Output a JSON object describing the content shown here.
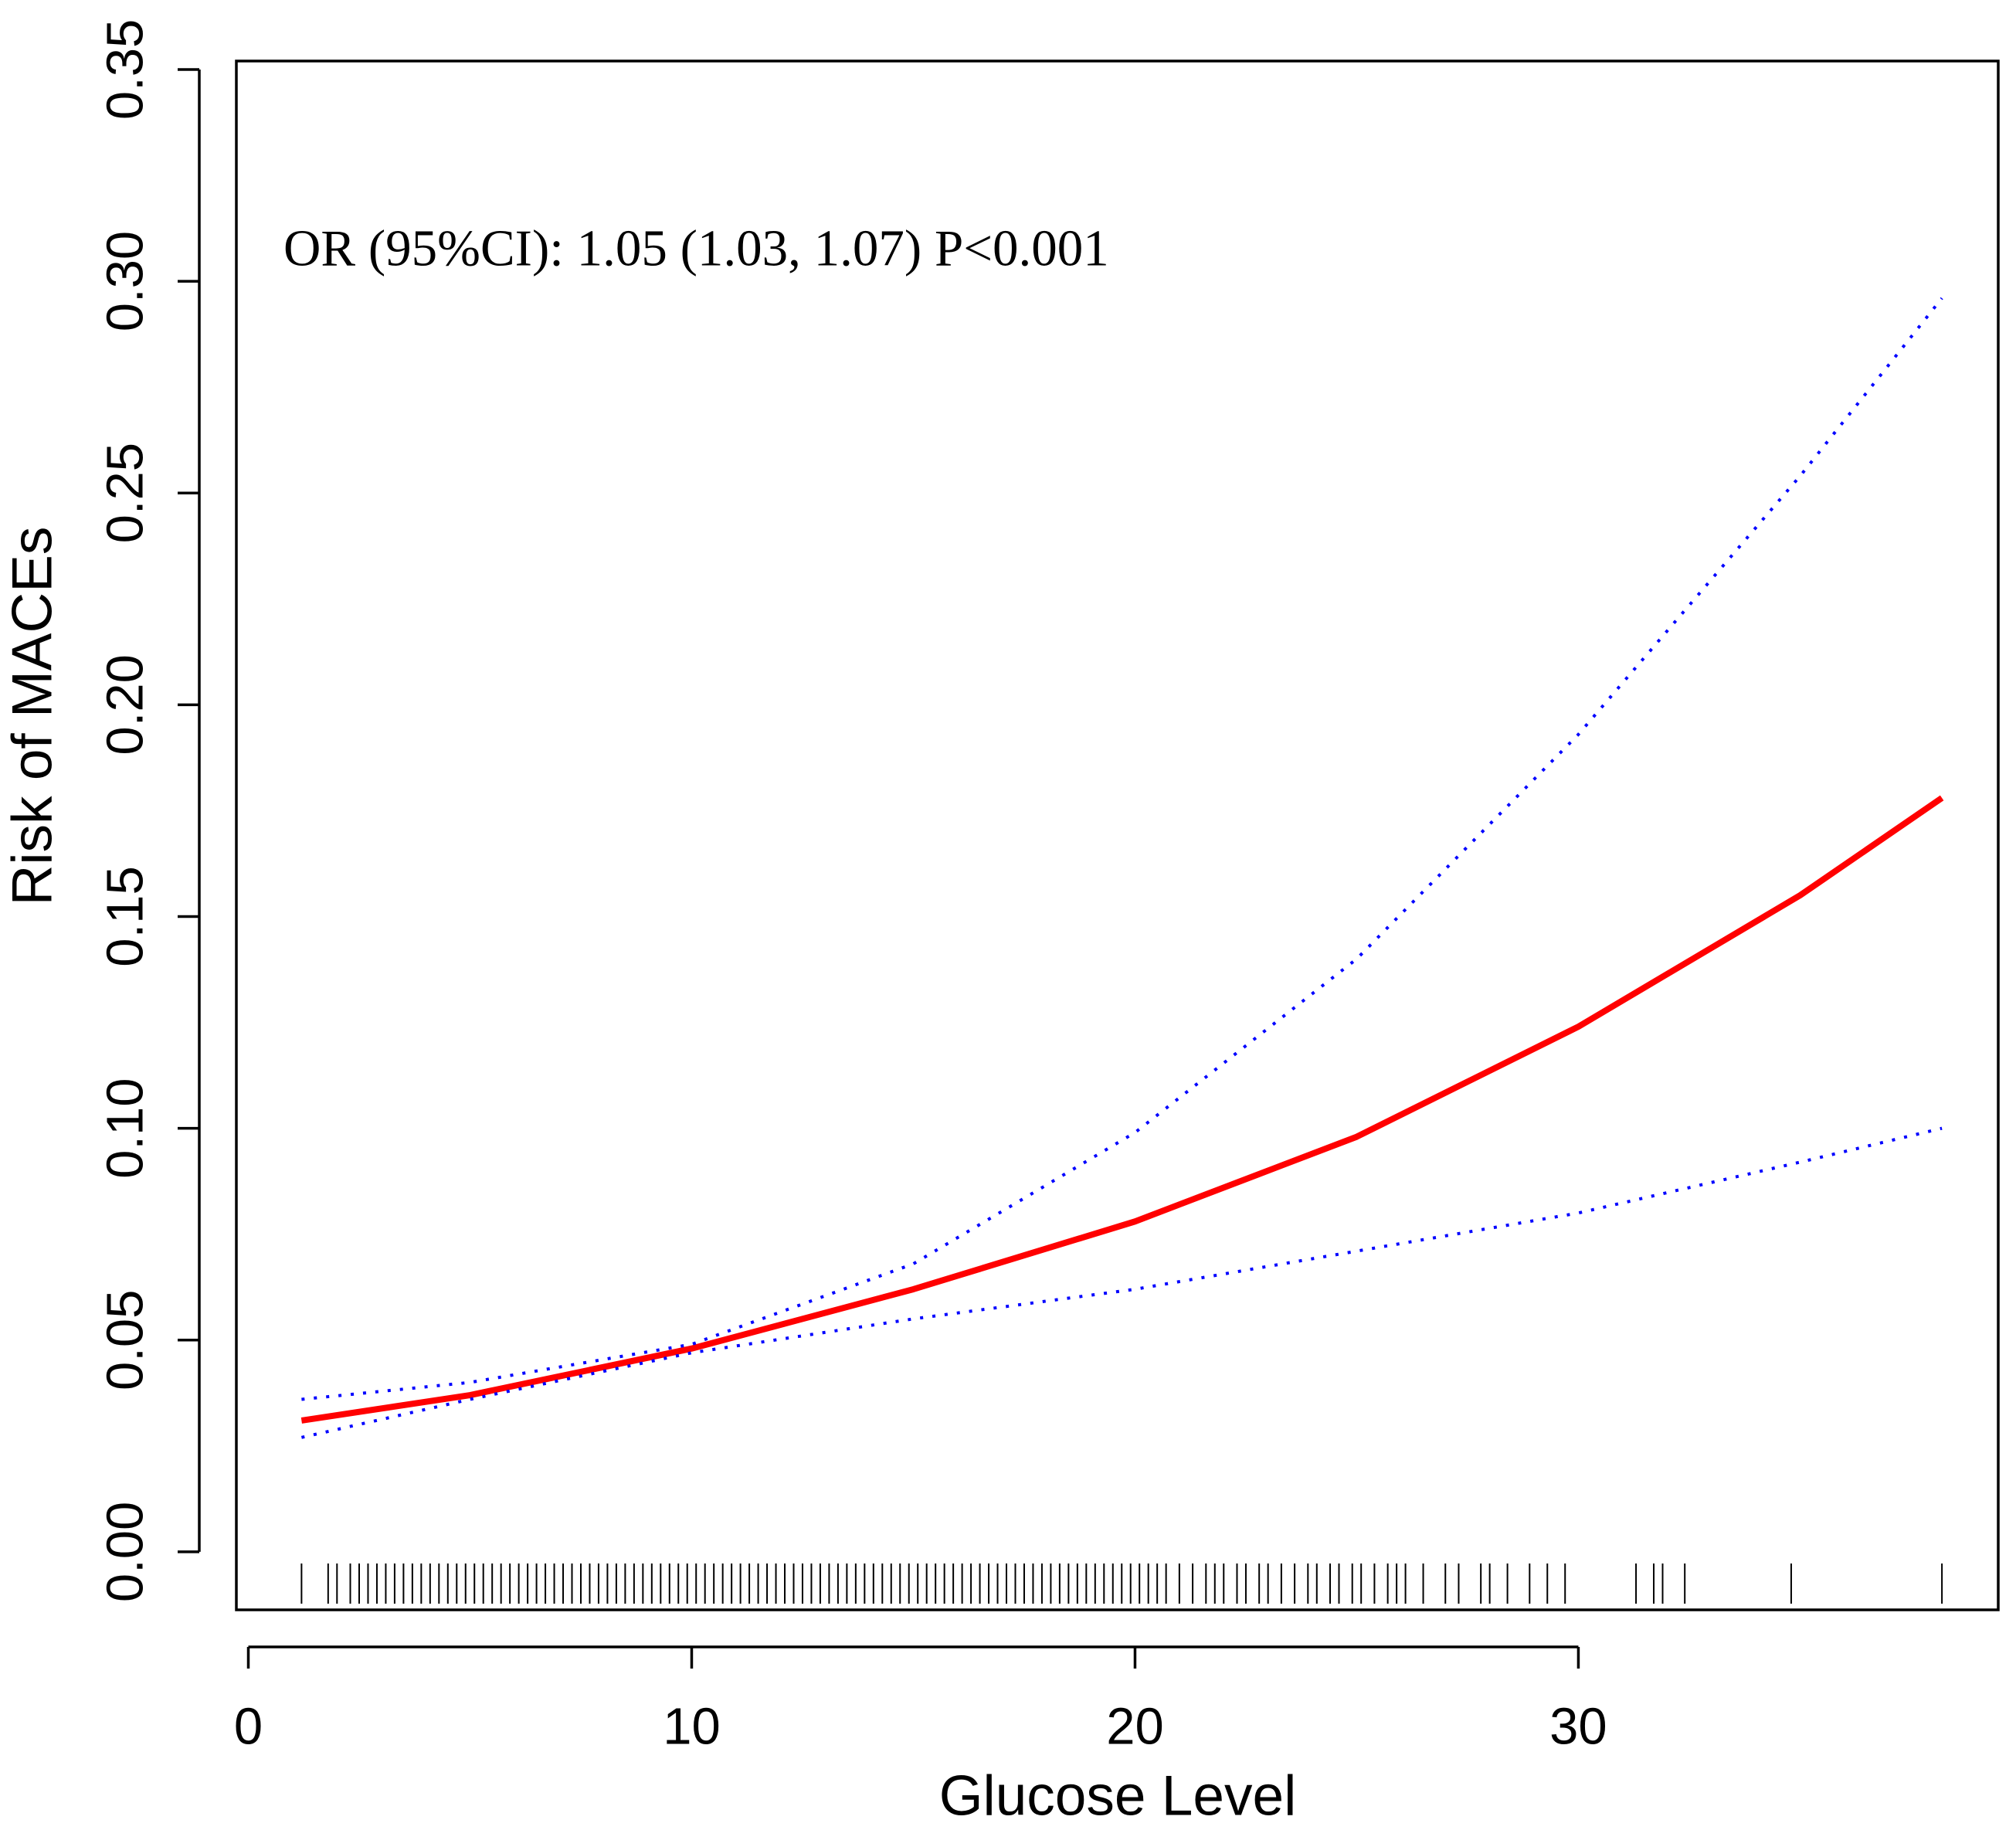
{
  "chart_data": {
    "type": "line",
    "y_label": "Risk of MACEs",
    "x_label": "Glucose Level",
    "annotation": "OR (95%CI): 1.05 (1.03, 1.07) P<0.001",
    "x": [
      1.2,
      5,
      10,
      15,
      20,
      25,
      30,
      35,
      38.2
    ],
    "series": [
      {
        "color": "#ff0000",
        "style": "solid",
        "values": [
          0.031,
          0.037,
          0.048,
          0.062,
          0.078,
          0.098,
          0.124,
          0.155,
          0.178
        ]
      },
      {
        "color": "#0000ff",
        "style": "dotted",
        "values": [
          0.036,
          0.04,
          0.049,
          0.068,
          0.099,
          0.14,
          0.193,
          0.254,
          0.296
        ]
      },
      {
        "color": "#0000ff",
        "style": "dotted",
        "values": [
          0.027,
          0.036,
          0.047,
          0.055,
          0.062,
          0.071,
          0.08,
          0.092,
          0.1
        ]
      }
    ],
    "rug": [
      1.2,
      1.8,
      2.0,
      2.3,
      2.5,
      2.7,
      2.9,
      3.1,
      3.3,
      3.5,
      3.7,
      3.9,
      4.1,
      4.3,
      4.5,
      4.7,
      4.9,
      5.1,
      5.3,
      5.5,
      5.7,
      5.9,
      6.1,
      6.3,
      6.5,
      6.7,
      6.9,
      7.1,
      7.3,
      7.5,
      7.7,
      7.9,
      8.1,
      8.3,
      8.5,
      8.7,
      8.9,
      9.1,
      9.3,
      9.5,
      9.7,
      9.9,
      10.1,
      10.3,
      10.5,
      10.7,
      10.9,
      11.1,
      11.3,
      11.5,
      11.7,
      11.9,
      12.1,
      12.3,
      12.5,
      12.7,
      12.9,
      13.1,
      13.3,
      13.5,
      13.7,
      13.9,
      14.1,
      14.3,
      14.5,
      14.7,
      14.9,
      15.1,
      15.3,
      15.5,
      15.7,
      15.9,
      16.1,
      16.3,
      16.5,
      16.7,
      16.9,
      17.1,
      17.3,
      17.5,
      17.7,
      17.9,
      18.1,
      18.3,
      18.5,
      18.7,
      18.9,
      19.1,
      19.3,
      19.5,
      19.7,
      19.9,
      20.1,
      20.3,
      20.5,
      20.7,
      21.0,
      21.3,
      21.6,
      21.8,
      22.0,
      22.3,
      22.5,
      22.8,
      23.0,
      23.3,
      23.6,
      23.9,
      24.1,
      24.4,
      24.6,
      24.9,
      25.1,
      25.4,
      25.7,
      25.9,
      26.1,
      26.5,
      27.0,
      27.3,
      27.8,
      28.0,
      28.4,
      28.9,
      29.3,
      29.7,
      31.3,
      31.7,
      31.9,
      32.4,
      34.8,
      38.2
    ],
    "xlim": [
      -0.27,
      39.47
    ],
    "ylim": [
      -0.0137,
      0.352
    ],
    "xticks": [
      0,
      10,
      20,
      30
    ],
    "yticks": [
      {
        "value": 0,
        "label": "0.00"
      },
      {
        "value": 0.05,
        "label": "0.05"
      },
      {
        "value": 0.1,
        "label": "0.10"
      },
      {
        "value": 0.15,
        "label": "0.15"
      },
      {
        "value": 0.2,
        "label": "0.20"
      },
      {
        "value": 0.25,
        "label": "0.25"
      },
      {
        "value": 0.3,
        "label": "0.30"
      },
      {
        "value": 0.35,
        "label": "0.35"
      }
    ]
  }
}
